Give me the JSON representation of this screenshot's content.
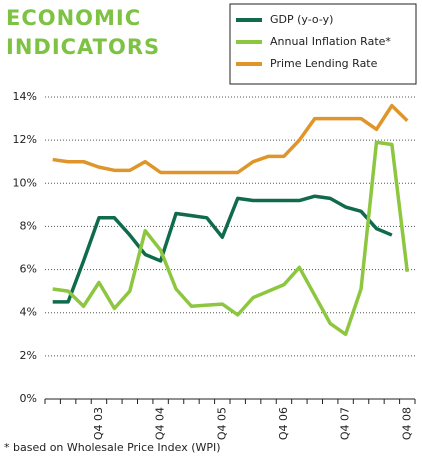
{
  "chart_data": {
    "type": "line",
    "title": "ECONOMIC INDICATORS",
    "footnote": "* based on Wholesale Price Index (WPI)",
    "categories": [
      null,
      null,
      null,
      "Q4 03",
      null,
      null,
      null,
      "Q4 04",
      null,
      null,
      null,
      "Q4 05",
      null,
      null,
      null,
      "Q4 06",
      null,
      null,
      null,
      "Q4 07",
      null,
      null,
      null,
      "Q4 08"
    ],
    "series": [
      {
        "name": "GDP (y-o-y)",
        "color": "#0f6b4b",
        "values": [
          4.5,
          4.5,
          6.4,
          8.4,
          8.4,
          7.6,
          6.7,
          6.4,
          8.6,
          8.5,
          8.4,
          7.5,
          9.3,
          9.2,
          9.2,
          9.2,
          9.2,
          9.4,
          9.3,
          8.9,
          8.7,
          7.9,
          7.6,
          null
        ]
      },
      {
        "name": "Annual Inflation Rate*",
        "color": "#8dc63f",
        "values": [
          5.1,
          5.0,
          4.3,
          5.4,
          4.2,
          5.0,
          7.8,
          6.9,
          5.1,
          4.3,
          4.35,
          4.4,
          3.9,
          4.7,
          5.0,
          5.3,
          6.1,
          4.8,
          3.5,
          3.0,
          5.1,
          11.9,
          11.8,
          5.9
        ]
      },
      {
        "name": "Prime Lending Rate",
        "color": "#e0952a",
        "values": [
          11.1,
          11.0,
          11.0,
          10.75,
          10.6,
          10.6,
          11.0,
          10.5,
          10.5,
          10.5,
          10.5,
          10.5,
          10.5,
          11.0,
          11.25,
          11.25,
          12.0,
          13.0,
          13.0,
          13.0,
          13.0,
          12.5,
          13.6,
          12.9
        ]
      }
    ],
    "ylim": [
      0,
      14
    ],
    "yticks": [
      {
        "value": 0,
        "label": "0%"
      },
      {
        "value": 2,
        "label": "2%"
      },
      {
        "value": 4,
        "label": "4%"
      },
      {
        "value": 6,
        "label": "6%"
      },
      {
        "value": 8,
        "label": "8%"
      },
      {
        "value": 10,
        "label": "10%"
      },
      {
        "value": 12,
        "label": "12%"
      },
      {
        "value": 14,
        "label": "14%"
      }
    ],
    "grid": true,
    "legend": "top-right"
  }
}
